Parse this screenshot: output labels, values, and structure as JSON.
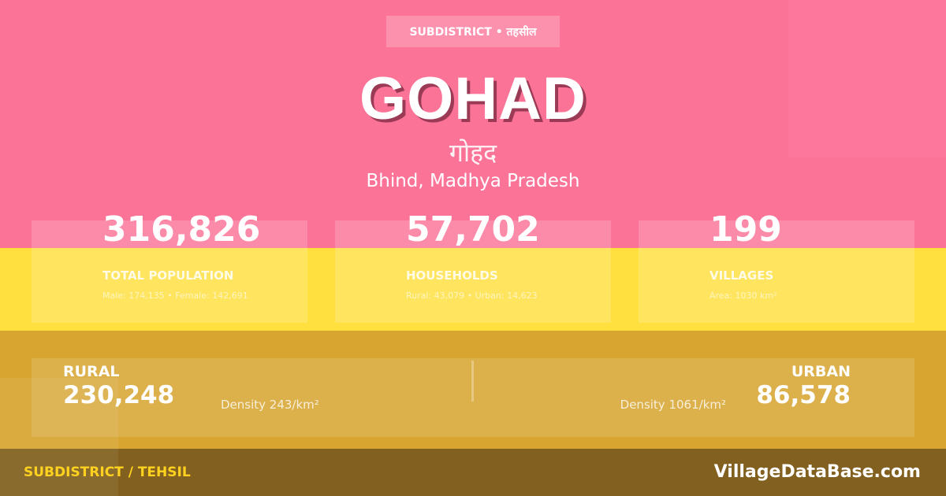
{
  "colors": {
    "top": "#fc7398",
    "middle": "#ffe03f",
    "lower": "#d8a531",
    "footer": "#82601f",
    "footer_label": "#ffd21f"
  },
  "badge": "SUBDISTRICT • तहसील",
  "title": "GOHAD",
  "title_hindi": "गोहद",
  "location": "Bhind, Madhya Pradesh",
  "stats": [
    {
      "value": "316,826",
      "label": "TOTAL POPULATION",
      "sub": "Male: 174,135 • Female: 142,691"
    },
    {
      "value": "57,702",
      "label": "HOUSEHOLDS",
      "sub": "Rural: 43,079 • Urban: 14,623"
    },
    {
      "value": "199",
      "label": "VILLAGES",
      "sub": "Area: 1030 km²"
    }
  ],
  "rural": {
    "label": "RURAL",
    "value": "230,248",
    "density": "Density 243/km²"
  },
  "urban": {
    "label": "URBAN",
    "value": "86,578",
    "density": "Density 1061/km²"
  },
  "footer": {
    "left": "SUBDISTRICT / TEHSIL",
    "right": "VillageDataBase.com"
  }
}
